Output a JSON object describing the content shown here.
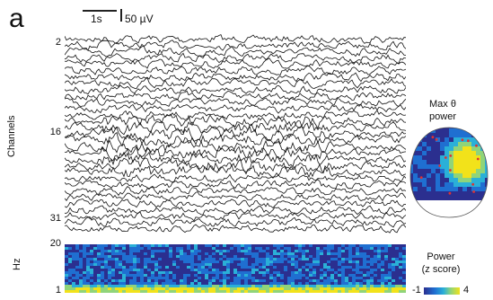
{
  "panel_label": "a",
  "scale": {
    "time": "1s",
    "amplitude": "50 µV"
  },
  "traces": {
    "y_axis_label": "Channels",
    "channel_ticks": [
      "2",
      "16",
      "31"
    ],
    "channel_count": 31,
    "trace_color": "#111111"
  },
  "spectrogram": {
    "y_axis_label": "Hz",
    "freq_ticks": [
      "20",
      "1"
    ]
  },
  "topoplot": {
    "title_line1": "Max θ",
    "title_line2": "power"
  },
  "colorbar": {
    "title_line1": "Power",
    "title_line2": "(z score)",
    "min_label": "-1",
    "max_label": "4",
    "colors": [
      "#2b2f8f",
      "#1f6fd1",
      "#2ab0d8",
      "#8fd47a",
      "#f2e21a"
    ]
  }
}
